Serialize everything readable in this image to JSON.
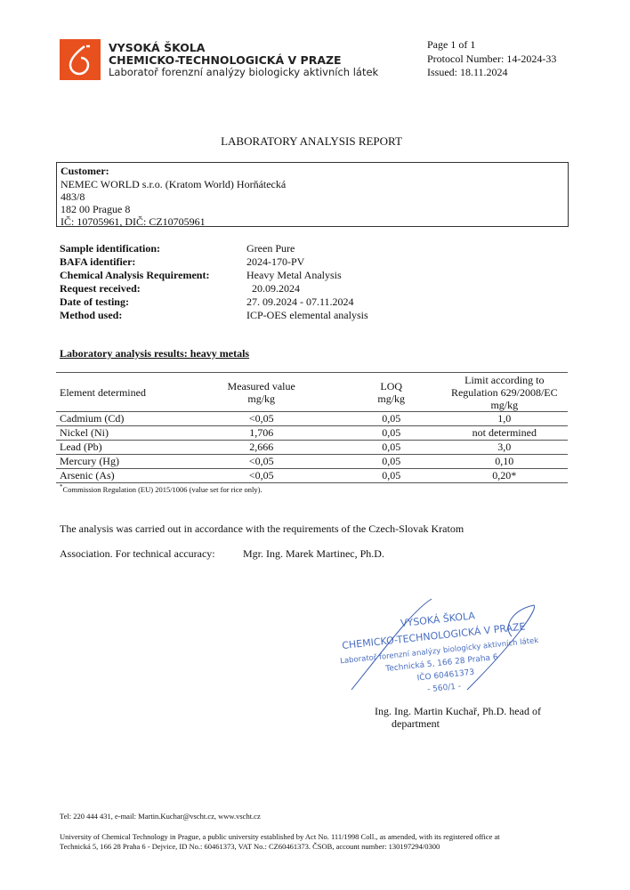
{
  "header": {
    "institution_line1": "VYSOKÁ ŠKOLA",
    "institution_line2": "CHEMICKO-TECHNOLOGICKÁ V PRAZE",
    "institution_line3": "Laboratoř forenzní analýzy biologicky aktivních látek",
    "page": "Page 1 of 1",
    "protocol": "Protocol Number: 14-2024-33",
    "issued": "Issued: 18.11.2024",
    "brand_color": "#e8501e"
  },
  "title": "LABORATORY ANALYSIS REPORT",
  "customer": {
    "label": "Customer:",
    "lines": [
      "NEMEC WORLD s.r.o. (Kratom World) Horňátecká",
      "483/8",
      "182 00 Prague 8",
      "IČ: 10705961, DIČ: CZ10705961"
    ]
  },
  "sample": [
    {
      "label": "Sample identification:",
      "value": "Green Pure"
    },
    {
      "label": "BAFA identifier:",
      "value": "2024-170-PV"
    },
    {
      "label": "Chemical Analysis Requirement:",
      "value": "Heavy Metal Analysis"
    },
    {
      "label": "Request received:",
      "value": "  20.09.2024"
    },
    {
      "label": "Date of testing:",
      "value": "27. 09.2024 - 07.11.2024"
    },
    {
      "label": "Method used:",
      "value": "ICP-OES elemental analysis"
    }
  ],
  "results": {
    "heading": "Laboratory analysis results: heavy metals",
    "columns": [
      "Element determined",
      "Measured value\nmg/kg",
      "LOQ\nmg/kg",
      "Limit according to\nRegulation 629/2008/EC\nmg/kg"
    ],
    "rows": [
      [
        "Cadmium (Cd)",
        "<0,05",
        "0,05",
        "1,0"
      ],
      [
        "Nickel (Ni)",
        "1,706",
        "0,05",
        "not determined"
      ],
      [
        "Lead (Pb)",
        "2,666",
        "0,05",
        "3,0"
      ],
      [
        "Mercury (Hg)",
        "<0,05",
        "0,05",
        "0,10"
      ],
      [
        "Arsenic (As)",
        "<0,05",
        "0,05",
        "0,20*"
      ]
    ],
    "footnote_mark": "*",
    "footnote": "Commission Regulation (EU) 2015/1006 (value set for rice only)."
  },
  "statement": "The analysis was carried out in accordance with the requirements of the Czech-Slovak Kratom",
  "accuracy_label": "Association. For technical accuracy:",
  "accuracy_name": "Mgr. Ing. Marek Martinec, Ph.D.",
  "stamp": {
    "lines": [
      "VYSOKÁ ŠKOLA",
      "CHEMICKO-TECHNOLOGICKÁ V PRAZE",
      "Laboratoř forenzní analýzy biologicky aktivních látek",
      "Technická 5, 166 28 Praha 6",
      "IČO 60461373",
      "- 560/1 -"
    ],
    "color": "#4a6fc0"
  },
  "signatory": {
    "line1": "Ing. Ing. Martin Kuchař, Ph.D. head of",
    "line2": "department"
  },
  "footer": {
    "contact": "Tel: 220 444 431, e-mail: Martin.Kuchar@vscht.cz, www.vscht.cz",
    "legal1": "University of Chemical Technology in Prague, a public university established by Act No. 111/1998 Coll., as amended, with its registered office at",
    "legal2": "Technická 5, 166 28 Praha 6 - Dejvice, ID No.: 60461373, VAT No.: CZ60461373. ČSOB, account number: 130197294/0300"
  }
}
